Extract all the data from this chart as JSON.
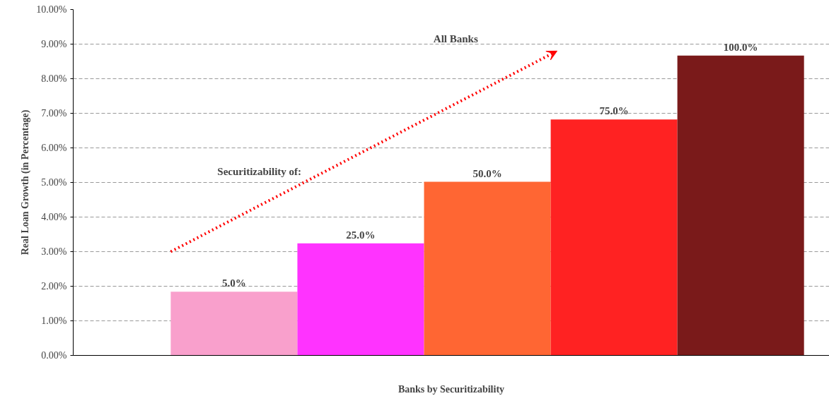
{
  "chart_data": {
    "type": "bar",
    "xlabel": "Banks by Securitizability",
    "ylabel": "Real Loan Growth (in Percentage)",
    "categories": [
      "5.0%",
      "25.0%",
      "50.0%",
      "75.0%",
      "100.0%"
    ],
    "values": [
      1.84,
      3.24,
      5.02,
      6.82,
      8.67
    ],
    "colors": [
      "#f9a0cc",
      "#ff33ff",
      "#ff6633",
      "#ff2222",
      "#7a1a1a"
    ],
    "ylim": [
      0,
      10
    ],
    "yticks": [
      {
        "value": 0,
        "label": "0.00%"
      },
      {
        "value": 1,
        "label": "1.00%"
      },
      {
        "value": 2,
        "label": "2.00%"
      },
      {
        "value": 3,
        "label": "3.00%"
      },
      {
        "value": 4,
        "label": "4.00%"
      },
      {
        "value": 5,
        "label": "5.00%"
      },
      {
        "value": 6,
        "label": "6.00%"
      },
      {
        "value": 7,
        "label": "7.00%"
      },
      {
        "value": 8,
        "label": "8.00%"
      },
      {
        "value": 9,
        "label": "9.00%"
      },
      {
        "value": 10,
        "label": "10.00%"
      }
    ],
    "grid": "y",
    "annotations": [
      "All Banks",
      "Securitizability of:"
    ]
  }
}
